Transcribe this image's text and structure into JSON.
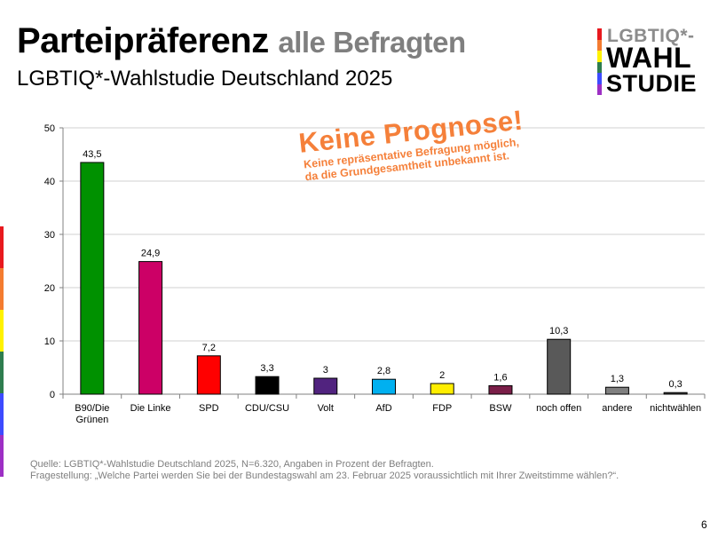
{
  "header": {
    "title_main": "Parteipräferenz",
    "title_sub": "alle Befragten",
    "subtitle": "LGBTIQ*-Wahlstudie Deutschland 2025"
  },
  "logo": {
    "line1": "LGBTIQ*-",
    "line2": "WAHL",
    "line3": "STUDIE",
    "stripe_colors": [
      "#e8191e",
      "#f47c30",
      "#fff200",
      "#2e7d4f",
      "#3d4bff",
      "#9d2fc4"
    ]
  },
  "stamp": {
    "headline": "Keine Prognose!",
    "line1": "Keine repräsentative Befragung möglich,",
    "line2": "da die Grundgesamtheit unbekannt ist.",
    "color": "#f5803a"
  },
  "footer": {
    "source": "Quelle: LGBTIQ*-Wahlstudie Deutschland 2025, N=6.320, Angaben in Prozent der Befragten.",
    "question": "Fragestellung: „Welche Partei werden Sie bei der Bundestagswahl am 23. Februar 2025 voraussichtlich mit Ihrer Zweitstimme wählen?“."
  },
  "page_number": "6",
  "chart_data": {
    "type": "bar",
    "title": "Parteipräferenz alle Befragten",
    "xlabel": "",
    "ylabel": "",
    "ylim": [
      0,
      50
    ],
    "yticks": [
      0,
      10,
      20,
      30,
      40,
      50
    ],
    "grid": true,
    "legend": "none",
    "categories": [
      "B90/Die Grünen",
      "Die Linke",
      "SPD",
      "CDU/CSU",
      "Volt",
      "AfD",
      "FDP",
      "BSW",
      "noch offen",
      "andere",
      "nichtwählen"
    ],
    "category_lines": [
      [
        "B90/Die",
        "Grünen"
      ],
      [
        "Die Linke"
      ],
      [
        "SPD"
      ],
      [
        "CDU/CSU"
      ],
      [
        "Volt"
      ],
      [
        "AfD"
      ],
      [
        "FDP"
      ],
      [
        "BSW"
      ],
      [
        "noch offen"
      ],
      [
        "andere"
      ],
      [
        "nichtwählen"
      ]
    ],
    "values": [
      43.5,
      24.9,
      7.2,
      3.3,
      3,
      2.8,
      2,
      1.6,
      10.3,
      1.3,
      0.3
    ],
    "value_labels": [
      "43,5",
      "24,9",
      "7,2",
      "3,3",
      "3",
      "2,8",
      "2",
      "1,6",
      "10,3",
      "1,3",
      "0,3"
    ],
    "colors": [
      "#009100",
      "#cc0066",
      "#ff0000",
      "#000000",
      "#51237f",
      "#00b0f0",
      "#ffee00",
      "#7a1e48",
      "#595959",
      "#808080",
      "#404040"
    ]
  }
}
